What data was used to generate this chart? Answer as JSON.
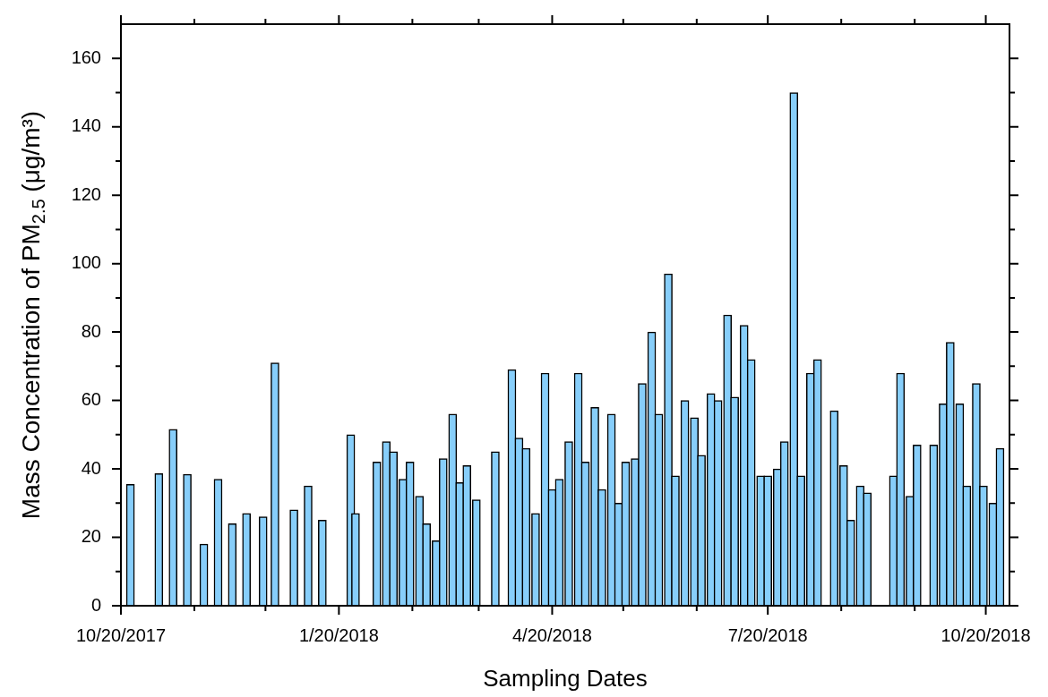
{
  "chart_data": {
    "type": "bar",
    "xlabel": "Sampling Dates",
    "ylabel": "Mass Concentration of PM$_{2.5}$ (μg/m³)",
    "color": "#87cefa",
    "x": [
      "2017-10-24",
      "2017-11-05",
      "2017-11-11",
      "2017-11-17",
      "2017-11-24",
      "2017-11-30",
      "2017-12-06",
      "2017-12-12",
      "2017-12-19",
      "2017-12-24",
      "2018-01-01",
      "2018-01-07",
      "2018-01-13",
      "2018-01-25",
      "2018-01-27",
      "2018-02-05",
      "2018-02-09",
      "2018-02-12",
      "2018-02-16",
      "2018-02-19",
      "2018-02-23",
      "2018-02-26",
      "2018-03-02",
      "2018-03-05",
      "2018-03-09",
      "2018-03-12",
      "2018-03-15",
      "2018-03-19",
      "2018-03-27",
      "2018-04-03",
      "2018-04-06",
      "2018-04-09",
      "2018-04-13",
      "2018-04-17",
      "2018-04-20",
      "2018-04-23",
      "2018-04-27",
      "2018-05-01",
      "2018-05-04",
      "2018-05-08",
      "2018-05-11",
      "2018-05-15",
      "2018-05-18",
      "2018-05-21",
      "2018-05-25",
      "2018-05-28",
      "2018-06-01",
      "2018-06-04",
      "2018-06-08",
      "2018-06-11",
      "2018-06-15",
      "2018-06-19",
      "2018-06-22",
      "2018-06-26",
      "2018-06-29",
      "2018-07-03",
      "2018-07-06",
      "2018-07-10",
      "2018-07-13",
      "2018-07-17",
      "2018-07-20",
      "2018-07-24",
      "2018-07-27",
      "2018-07-31",
      "2018-08-03",
      "2018-08-07",
      "2018-08-10",
      "2018-08-17",
      "2018-08-21",
      "2018-08-24",
      "2018-08-28",
      "2018-08-31",
      "2018-09-11",
      "2018-09-14",
      "2018-09-18",
      "2018-09-21",
      "2018-09-28",
      "2018-10-02",
      "2018-10-05",
      "2018-10-09",
      "2018-10-12",
      "2018-10-16",
      "2018-10-19",
      "2018-10-23",
      "2018-10-26"
    ],
    "values": [
      35.5,
      38.6,
      51.6,
      38.4,
      18,
      37,
      24,
      27,
      26,
      71,
      28,
      35,
      25,
      50,
      27,
      42,
      48,
      45,
      37,
      42,
      32,
      24,
      19,
      43,
      56,
      36,
      41,
      31,
      45,
      69,
      49,
      46,
      27,
      68,
      34,
      37,
      48,
      68,
      42,
      58,
      34,
      56,
      30,
      42,
      43,
      65,
      80,
      56,
      97,
      38,
      60,
      55,
      44,
      62,
      60,
      85,
      61,
      82,
      72,
      38,
      38,
      40,
      48,
      150,
      38,
      68,
      72,
      57,
      41,
      25,
      35,
      33,
      38,
      68,
      32,
      47,
      47,
      59,
      77,
      59,
      35,
      65,
      35,
      30,
      46
    ],
    "xlim": [
      "2017-10-20",
      "2018-10-30"
    ],
    "xticks": [
      {
        "value": "2017-10-20",
        "label": "10/20/2017"
      },
      {
        "value": "2017-11-20",
        "label": null
      },
      {
        "value": "2017-12-20",
        "label": null
      },
      {
        "value": "2018-01-20",
        "label": "1/20/2018"
      },
      {
        "value": "2018-02-20",
        "label": null
      },
      {
        "value": "2018-03-20",
        "label": null
      },
      {
        "value": "2018-04-20",
        "label": "4/20/2018"
      },
      {
        "value": "2018-05-20",
        "label": null
      },
      {
        "value": "2018-06-20",
        "label": null
      },
      {
        "value": "2018-07-20",
        "label": "7/20/2018"
      },
      {
        "value": "2018-08-20",
        "label": null
      },
      {
        "value": "2018-09-20",
        "label": null
      },
      {
        "value": "2018-10-20",
        "label": "10/20/2018"
      }
    ],
    "ylim": [
      0,
      170
    ],
    "yticks": [
      0,
      {
        "value": 10,
        "label": null
      },
      20,
      {
        "value": 30,
        "label": null
      },
      40,
      {
        "value": 50,
        "label": null
      },
      60,
      {
        "value": 70,
        "label": null
      },
      80,
      {
        "value": 90,
        "label": null
      },
      100,
      {
        "value": 110,
        "label": null
      },
      120,
      {
        "value": 130,
        "label": null
      },
      140,
      {
        "value": 150,
        "label": null
      },
      160
    ],
    "grid": false,
    "legend": false
  }
}
